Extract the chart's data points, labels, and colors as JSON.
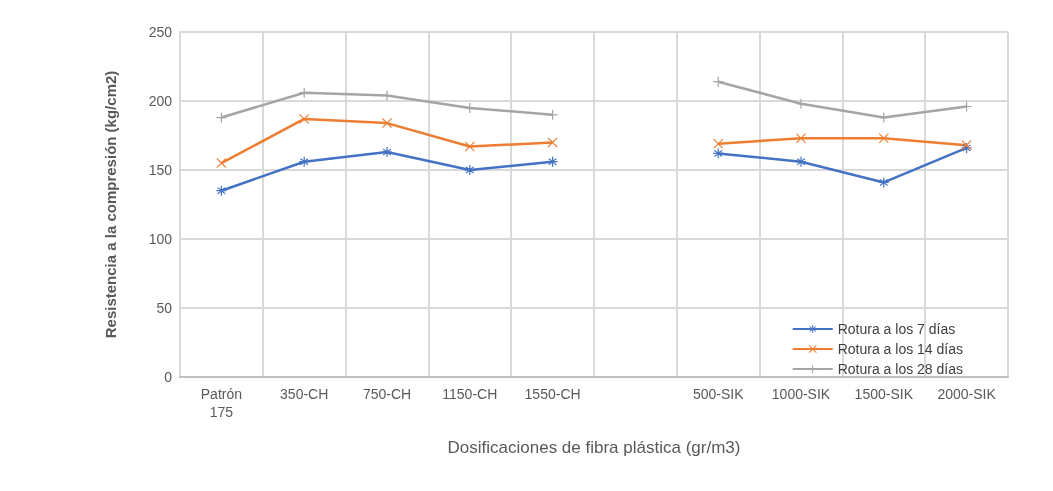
{
  "chart_data": {
    "type": "line",
    "xlabel": "Dosificaciones de fibra plástica (gr/m3)",
    "ylabel": "Resistencia a la compresión (kg/cm2)",
    "categories": [
      "Patrón\n175",
      "350-CH",
      "750-CH",
      "1150-CH",
      "1550-CH",
      null,
      "500-SIK",
      "1000-SIK",
      "1500-SIK",
      "2000-SIK"
    ],
    "series": [
      {
        "name": "Rotura a los 7 días",
        "color": "#4472c4",
        "marker": "star",
        "values": [
          135,
          156,
          163,
          150,
          156,
          null,
          162,
          156,
          141,
          166
        ]
      },
      {
        "name": "Rotura a los 14 días",
        "color": "#ed7d31",
        "marker": "cross",
        "values": [
          155,
          187,
          184,
          167,
          170,
          null,
          169,
          173,
          173,
          168
        ]
      },
      {
        "name": "Rotura a los 28 días",
        "color": "#a5a5a5",
        "marker": "plus",
        "values": [
          188,
          206,
          204,
          195,
          190,
          null,
          214,
          198,
          188,
          196
        ]
      }
    ],
    "ylim": [
      0,
      250
    ],
    "yticks": [
      0,
      50,
      100,
      150,
      200,
      250
    ],
    "grid": true,
    "legend": "bottom right"
  }
}
